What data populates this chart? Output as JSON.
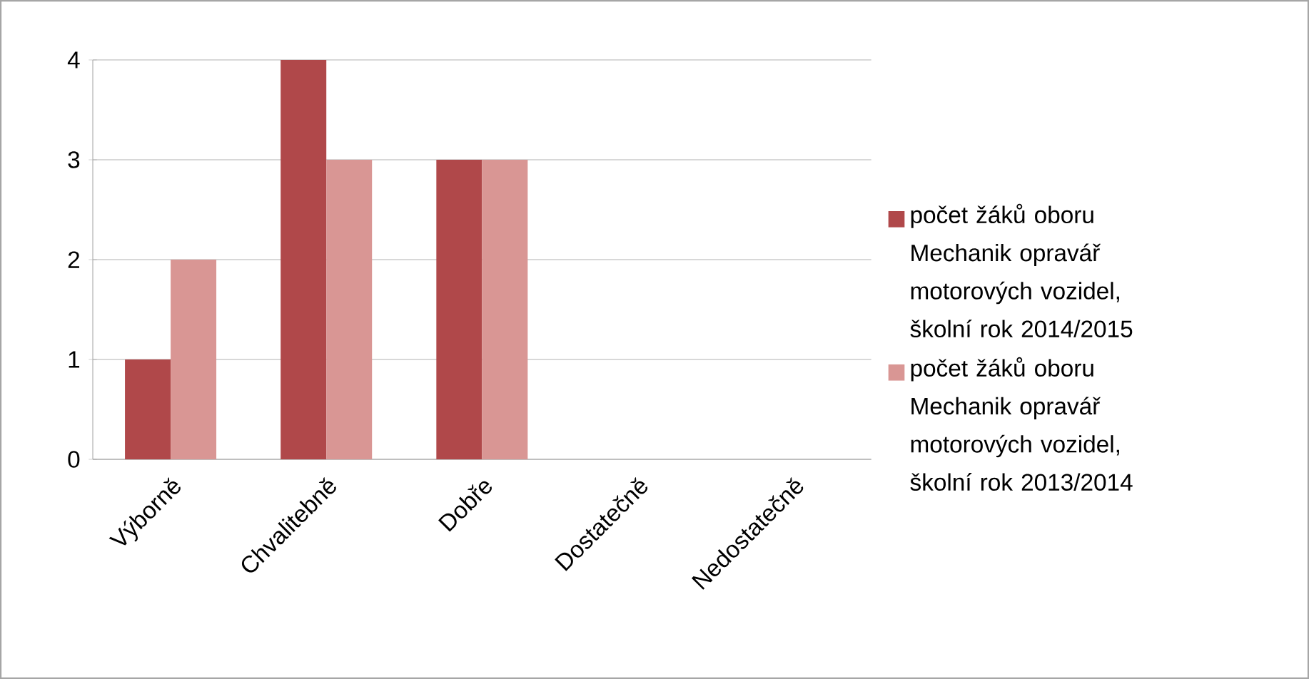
{
  "chart_data": {
    "type": "bar",
    "categories": [
      "Výborně",
      "Chvalitebně",
      "Dobře",
      "Dostatečně",
      "Nedostatečně"
    ],
    "series": [
      {
        "name": "počet žáků oboru Mechanik opravář motorových vozidel, školní rok 2014/2015",
        "color": "#b0484a",
        "values": [
          1,
          4,
          3,
          0,
          0
        ]
      },
      {
        "name": "počet žáků oboru Mechanik opravář motorových vozidel, školní rok 2013/2014",
        "color": "#d99694",
        "values": [
          2,
          3,
          3,
          0,
          0
        ]
      }
    ],
    "ylim": [
      0,
      4
    ],
    "yticks": [
      0,
      1,
      2,
      3,
      4
    ],
    "grid": "y",
    "legend": "right"
  }
}
